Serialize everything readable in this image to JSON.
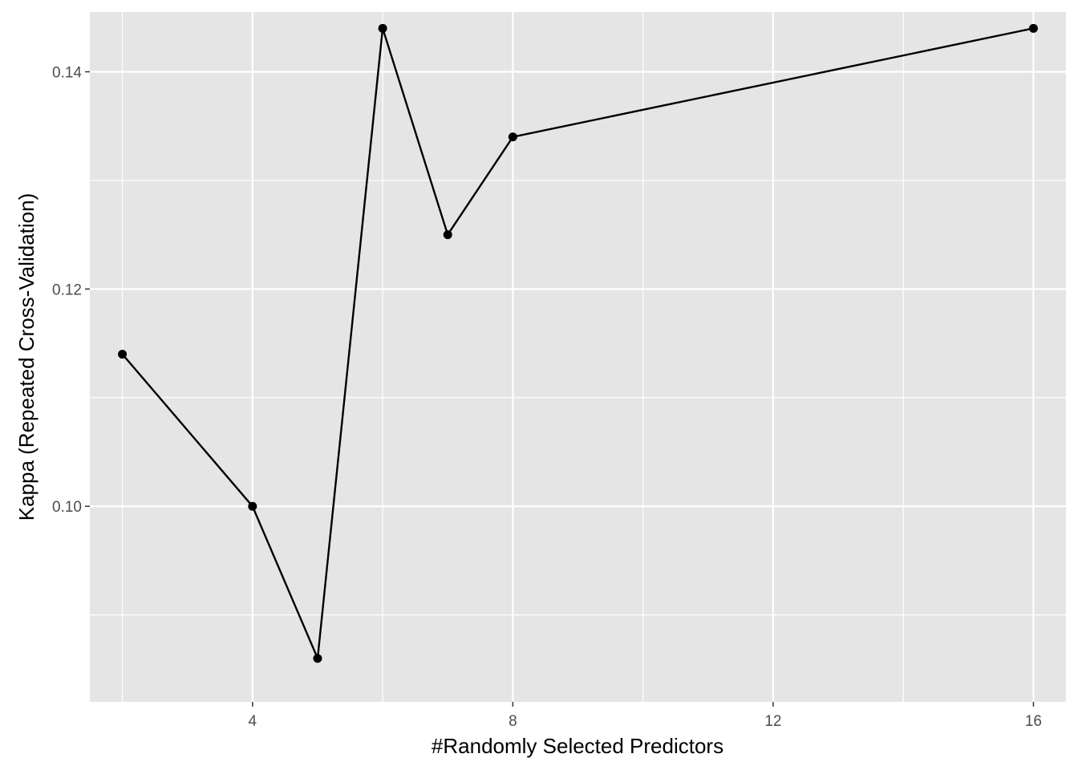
{
  "chart_data": {
    "type": "line",
    "title": "",
    "xlabel": "#Randomly Selected Predictors",
    "ylabel": "Kappa (Repeated Cross-Validation)",
    "xlim": [
      1.5,
      16.5
    ],
    "ylim": [
      0.082,
      0.1455
    ],
    "x_major_ticks": [
      4,
      8,
      12,
      16
    ],
    "x_minor_ticks": [
      2,
      6,
      10,
      14
    ],
    "y_major_ticks": [
      0.1,
      0.12,
      0.14
    ],
    "y_minor_ticks": [
      0.09,
      0.11,
      0.13
    ],
    "x_tick_labels": [
      "4",
      "8",
      "12",
      "16"
    ],
    "y_tick_labels": [
      "0.10",
      "0.12",
      "0.14"
    ],
    "grid": true,
    "panel_background": "#e5e5e5",
    "grid_color": "#ffffff",
    "line_color": "#000000",
    "point_color": "#000000",
    "x": [
      2,
      4,
      5,
      6,
      7,
      8,
      16
    ],
    "y": [
      0.114,
      0.1,
      0.086,
      0.144,
      0.125,
      0.134,
      0.144
    ]
  }
}
